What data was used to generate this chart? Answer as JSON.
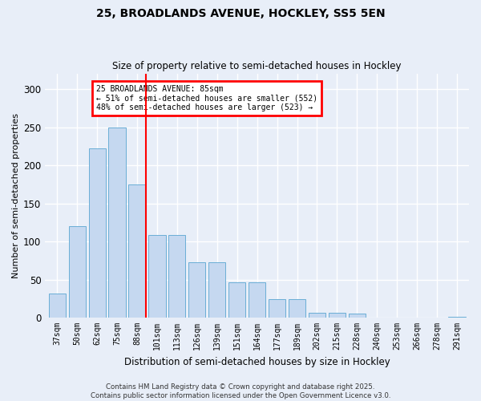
{
  "title1": "25, BROADLANDS AVENUE, HOCKLEY, SS5 5EN",
  "title2": "Size of property relative to semi-detached houses in Hockley",
  "xlabel": "Distribution of semi-detached houses by size in Hockley",
  "ylabel": "Number of semi-detached properties",
  "categories": [
    "37sqm",
    "50sqm",
    "62sqm",
    "75sqm",
    "88sqm",
    "101sqm",
    "113sqm",
    "126sqm",
    "139sqm",
    "151sqm",
    "164sqm",
    "177sqm",
    "189sqm",
    "202sqm",
    "215sqm",
    "228sqm",
    "240sqm",
    "253sqm",
    "266sqm",
    "278sqm",
    "291sqm"
  ],
  "values": [
    32,
    120,
    222,
    250,
    175,
    108,
    108,
    73,
    73,
    46,
    46,
    24,
    24,
    6,
    6,
    5,
    0,
    0,
    0,
    0,
    1
  ],
  "bar_color": "#c5d8f0",
  "bar_edge_color": "#6aaed6",
  "vline_index": 4,
  "vline_color": "red",
  "annotation_title": "25 BROADLANDS AVENUE: 85sqm",
  "annotation_line1": "← 51% of semi-detached houses are smaller (552)",
  "annotation_line2": "48% of semi-detached houses are larger (523) →",
  "footer1": "Contains HM Land Registry data © Crown copyright and database right 2025.",
  "footer2": "Contains public sector information licensed under the Open Government Licence v3.0.",
  "ylim": [
    0,
    320
  ],
  "yticks": [
    0,
    50,
    100,
    150,
    200,
    250,
    300
  ],
  "bg_color": "#e8eef8",
  "plot_bg_color": "#e8eef8",
  "grid_color": "white"
}
